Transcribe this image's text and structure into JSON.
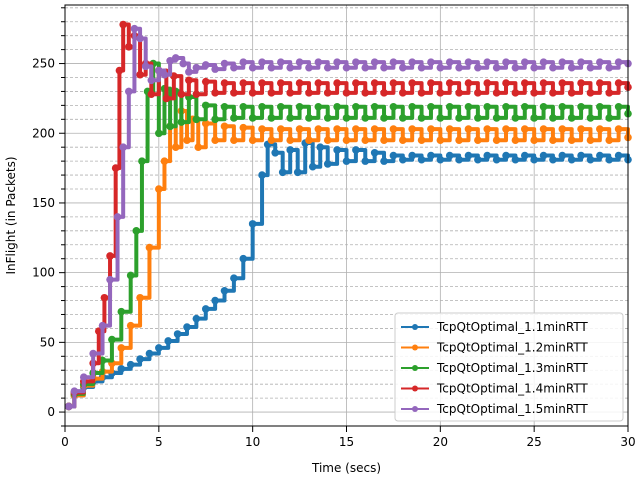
{
  "chart_data": {
    "type": "line",
    "title": "",
    "xlabel": "Time (secs)",
    "ylabel": "InFlight (in Packets)",
    "xlim": [
      0,
      30
    ],
    "ylim": [
      -10,
      292
    ],
    "x_ticks": [
      0,
      5,
      10,
      15,
      20,
      25,
      30
    ],
    "y_ticks": [
      0,
      50,
      100,
      150,
      200,
      250
    ],
    "grid": {
      "major": true,
      "minor_y": true
    },
    "legend_position": "lower-right",
    "series": [
      {
        "name": "TcpQtOptimal_1.1minRTT",
        "color": "#1f77b4",
        "points": [
          [
            0.2,
            4
          ],
          [
            0.5,
            12
          ],
          [
            1,
            18
          ],
          [
            1.5,
            22
          ],
          [
            2,
            25
          ],
          [
            2.5,
            28
          ],
          [
            3,
            31
          ],
          [
            3.5,
            34
          ],
          [
            4,
            38
          ],
          [
            4.5,
            42
          ],
          [
            5,
            46
          ],
          [
            5.5,
            51
          ],
          [
            6,
            56
          ],
          [
            6.5,
            61
          ],
          [
            7,
            67
          ],
          [
            7.5,
            74
          ],
          [
            8,
            80
          ],
          [
            8.5,
            87
          ],
          [
            9,
            96
          ],
          [
            9.5,
            110
          ],
          [
            10,
            135
          ],
          [
            10.5,
            170
          ],
          [
            10.8,
            192
          ],
          [
            11.2,
            186
          ],
          [
            11.6,
            172
          ],
          [
            12,
            188
          ],
          [
            12.4,
            172
          ],
          [
            12.8,
            193
          ],
          [
            13.2,
            176
          ],
          [
            13.6,
            190
          ],
          [
            14,
            178
          ],
          [
            14.5,
            188
          ],
          [
            15,
            180
          ],
          [
            15.5,
            188
          ],
          [
            16,
            180
          ],
          [
            16.5,
            186
          ],
          [
            17,
            180
          ],
          [
            17.5,
            184
          ],
          [
            18,
            181
          ],
          [
            18.5,
            184
          ],
          [
            19,
            181
          ],
          [
            19.5,
            184
          ],
          [
            20,
            181
          ],
          [
            20.5,
            184
          ],
          [
            21,
            181
          ],
          [
            21.5,
            184
          ],
          [
            22,
            181
          ],
          [
            22.5,
            184
          ],
          [
            23,
            181
          ],
          [
            23.5,
            184
          ],
          [
            24,
            181
          ],
          [
            24.5,
            184
          ],
          [
            25,
            181
          ],
          [
            25.5,
            184
          ],
          [
            26,
            181
          ],
          [
            26.5,
            184
          ],
          [
            27,
            181
          ],
          [
            27.5,
            184
          ],
          [
            28,
            181
          ],
          [
            28.5,
            184
          ],
          [
            29,
            181
          ],
          [
            29.5,
            184
          ],
          [
            30,
            181
          ]
        ]
      },
      {
        "name": "TcpQtOptimal_1.2minRTT",
        "color": "#ff7f0e",
        "points": [
          [
            0.2,
            4
          ],
          [
            0.5,
            12
          ],
          [
            1,
            19
          ],
          [
            1.5,
            24
          ],
          [
            2,
            29
          ],
          [
            2.5,
            35
          ],
          [
            3,
            46
          ],
          [
            3.5,
            62
          ],
          [
            4,
            82
          ],
          [
            4.5,
            118
          ],
          [
            5,
            160
          ],
          [
            5.3,
            180
          ],
          [
            5.6,
            205
          ],
          [
            5.9,
            190
          ],
          [
            6.2,
            216
          ],
          [
            6.5,
            195
          ],
          [
            6.8,
            210
          ],
          [
            7.1,
            190
          ],
          [
            7.5,
            207
          ],
          [
            8,
            195
          ],
          [
            8.5,
            205
          ],
          [
            9,
            195
          ],
          [
            9.5,
            204
          ],
          [
            10,
            195
          ],
          [
            10.5,
            203
          ],
          [
            11,
            195
          ],
          [
            11.5,
            203
          ],
          [
            12,
            195
          ],
          [
            12.5,
            203
          ],
          [
            13,
            195
          ],
          [
            13.5,
            203
          ],
          [
            14,
            195
          ],
          [
            14.5,
            203
          ],
          [
            15,
            195
          ],
          [
            15.5,
            203
          ],
          [
            16,
            195
          ],
          [
            16.5,
            203
          ],
          [
            17,
            195
          ],
          [
            17.5,
            203
          ],
          [
            18,
            195
          ],
          [
            18.5,
            203
          ],
          [
            19,
            195
          ],
          [
            19.5,
            203
          ],
          [
            20,
            195
          ],
          [
            20.5,
            203
          ],
          [
            21,
            195
          ],
          [
            21.5,
            203
          ],
          [
            22,
            195
          ],
          [
            22.5,
            203
          ],
          [
            23,
            195
          ],
          [
            23.5,
            203
          ],
          [
            24,
            195
          ],
          [
            24.5,
            203
          ],
          [
            25,
            195
          ],
          [
            25.5,
            203
          ],
          [
            26,
            195
          ],
          [
            26.5,
            203
          ],
          [
            27,
            195
          ],
          [
            27.5,
            203
          ],
          [
            28,
            195
          ],
          [
            28.5,
            203
          ],
          [
            29,
            195
          ],
          [
            29.5,
            203
          ],
          [
            30,
            197
          ]
        ]
      },
      {
        "name": "TcpQtOptimal_1.3minRTT",
        "color": "#2ca02c",
        "points": [
          [
            0.2,
            4
          ],
          [
            0.5,
            13
          ],
          [
            1,
            20
          ],
          [
            1.5,
            28
          ],
          [
            2,
            37
          ],
          [
            2.5,
            52
          ],
          [
            3,
            72
          ],
          [
            3.5,
            98
          ],
          [
            3.8,
            130
          ],
          [
            4.1,
            180
          ],
          [
            4.4,
            230
          ],
          [
            4.7,
            250
          ],
          [
            5,
            200
          ],
          [
            5.3,
            232
          ],
          [
            5.6,
            205
          ],
          [
            5.9,
            230
          ],
          [
            6.2,
            208
          ],
          [
            6.6,
            226
          ],
          [
            7,
            210
          ],
          [
            7.5,
            220
          ],
          [
            8,
            210
          ],
          [
            8.5,
            219
          ],
          [
            9,
            211
          ],
          [
            9.5,
            219
          ],
          [
            10,
            211
          ],
          [
            10.5,
            219
          ],
          [
            11,
            211
          ],
          [
            11.5,
            219
          ],
          [
            12,
            211
          ],
          [
            12.5,
            219
          ],
          [
            13,
            211
          ],
          [
            13.5,
            219
          ],
          [
            14,
            211
          ],
          [
            14.5,
            219
          ],
          [
            15,
            211
          ],
          [
            15.5,
            219
          ],
          [
            16,
            211
          ],
          [
            16.5,
            219
          ],
          [
            17,
            211
          ],
          [
            17.5,
            219
          ],
          [
            18,
            211
          ],
          [
            18.5,
            219
          ],
          [
            19,
            211
          ],
          [
            19.5,
            219
          ],
          [
            20,
            211
          ],
          [
            20.5,
            219
          ],
          [
            21,
            211
          ],
          [
            21.5,
            219
          ],
          [
            22,
            211
          ],
          [
            22.5,
            219
          ],
          [
            23,
            211
          ],
          [
            23.5,
            219
          ],
          [
            24,
            211
          ],
          [
            24.5,
            219
          ],
          [
            25,
            211
          ],
          [
            25.5,
            219
          ],
          [
            26,
            211
          ],
          [
            26.5,
            219
          ],
          [
            27,
            211
          ],
          [
            27.5,
            219
          ],
          [
            28,
            211
          ],
          [
            28.5,
            219
          ],
          [
            29,
            211
          ],
          [
            29.5,
            219
          ],
          [
            30,
            214
          ]
        ]
      },
      {
        "name": "TcpQtOptimal_1.4minRTT",
        "color": "#d62728",
        "points": [
          [
            0.2,
            4
          ],
          [
            0.5,
            14
          ],
          [
            1,
            22
          ],
          [
            1.5,
            35
          ],
          [
            1.8,
            58
          ],
          [
            2.1,
            82
          ],
          [
            2.4,
            112
          ],
          [
            2.7,
            175
          ],
          [
            2.9,
            245
          ],
          [
            3.1,
            278
          ],
          [
            3.4,
            262
          ],
          [
            3.7,
            270
          ],
          [
            4,
            242
          ],
          [
            4.3,
            250
          ],
          [
            4.6,
            228
          ],
          [
            5,
            245
          ],
          [
            5.4,
            225
          ],
          [
            5.8,
            241
          ],
          [
            6.2,
            228
          ],
          [
            6.6,
            238
          ],
          [
            7,
            228
          ],
          [
            7.5,
            237
          ],
          [
            8,
            229
          ],
          [
            8.5,
            236
          ],
          [
            9,
            229
          ],
          [
            9.5,
            236
          ],
          [
            10,
            229
          ],
          [
            10.5,
            236
          ],
          [
            11,
            229
          ],
          [
            11.5,
            236
          ],
          [
            12,
            229
          ],
          [
            12.5,
            236
          ],
          [
            13,
            229
          ],
          [
            13.5,
            236
          ],
          [
            14,
            229
          ],
          [
            14.5,
            236
          ],
          [
            15,
            229
          ],
          [
            15.5,
            236
          ],
          [
            16,
            229
          ],
          [
            16.5,
            236
          ],
          [
            17,
            229
          ],
          [
            17.5,
            236
          ],
          [
            18,
            229
          ],
          [
            18.5,
            236
          ],
          [
            19,
            229
          ],
          [
            19.5,
            236
          ],
          [
            20,
            229
          ],
          [
            20.5,
            236
          ],
          [
            21,
            229
          ],
          [
            21.5,
            236
          ],
          [
            22,
            229
          ],
          [
            22.5,
            236
          ],
          [
            23,
            229
          ],
          [
            23.5,
            236
          ],
          [
            24,
            229
          ],
          [
            24.5,
            236
          ],
          [
            25,
            229
          ],
          [
            25.5,
            236
          ],
          [
            26,
            229
          ],
          [
            26.5,
            236
          ],
          [
            27,
            229
          ],
          [
            27.5,
            236
          ],
          [
            28,
            229
          ],
          [
            28.5,
            236
          ],
          [
            29,
            229
          ],
          [
            29.5,
            236
          ],
          [
            30,
            233
          ]
        ]
      },
      {
        "name": "TcpQtOptimal_1.5minRTT",
        "color": "#9467bd",
        "points": [
          [
            0.2,
            4
          ],
          [
            0.5,
            15
          ],
          [
            1,
            25
          ],
          [
            1.5,
            42
          ],
          [
            2,
            62
          ],
          [
            2.4,
            95
          ],
          [
            2.8,
            140
          ],
          [
            3.1,
            190
          ],
          [
            3.4,
            230
          ],
          [
            3.7,
            275
          ],
          [
            4,
            268
          ],
          [
            4.3,
            248
          ],
          [
            4.6,
            238
          ],
          [
            5,
            245
          ],
          [
            5.3,
            242
          ],
          [
            5.6,
            252
          ],
          [
            5.9,
            254
          ],
          [
            6.3,
            250
          ],
          [
            6.6,
            244
          ],
          [
            7,
            247
          ],
          [
            7.5,
            249
          ],
          [
            8,
            246
          ],
          [
            8.5,
            250
          ],
          [
            9,
            247
          ],
          [
            9.5,
            251
          ],
          [
            10,
            247
          ],
          [
            10.5,
            251
          ],
          [
            11,
            247
          ],
          [
            11.5,
            251
          ],
          [
            12,
            247
          ],
          [
            12.5,
            251
          ],
          [
            13,
            247
          ],
          [
            13.5,
            251
          ],
          [
            14,
            247
          ],
          [
            14.5,
            251
          ],
          [
            15,
            247
          ],
          [
            15.5,
            251
          ],
          [
            16,
            247
          ],
          [
            16.5,
            251
          ],
          [
            17,
            247
          ],
          [
            17.5,
            251
          ],
          [
            18,
            247
          ],
          [
            18.5,
            251
          ],
          [
            19,
            247
          ],
          [
            19.5,
            251
          ],
          [
            20,
            247
          ],
          [
            20.5,
            251
          ],
          [
            21,
            247
          ],
          [
            21.5,
            251
          ],
          [
            22,
            247
          ],
          [
            22.5,
            251
          ],
          [
            23,
            247
          ],
          [
            23.5,
            251
          ],
          [
            24,
            247
          ],
          [
            24.5,
            251
          ],
          [
            25,
            247
          ],
          [
            25.5,
            251
          ],
          [
            26,
            247
          ],
          [
            26.5,
            251
          ],
          [
            27,
            247
          ],
          [
            27.5,
            251
          ],
          [
            28,
            247
          ],
          [
            28.5,
            251
          ],
          [
            29,
            247
          ],
          [
            29.5,
            251
          ],
          [
            30,
            250
          ]
        ]
      }
    ]
  }
}
